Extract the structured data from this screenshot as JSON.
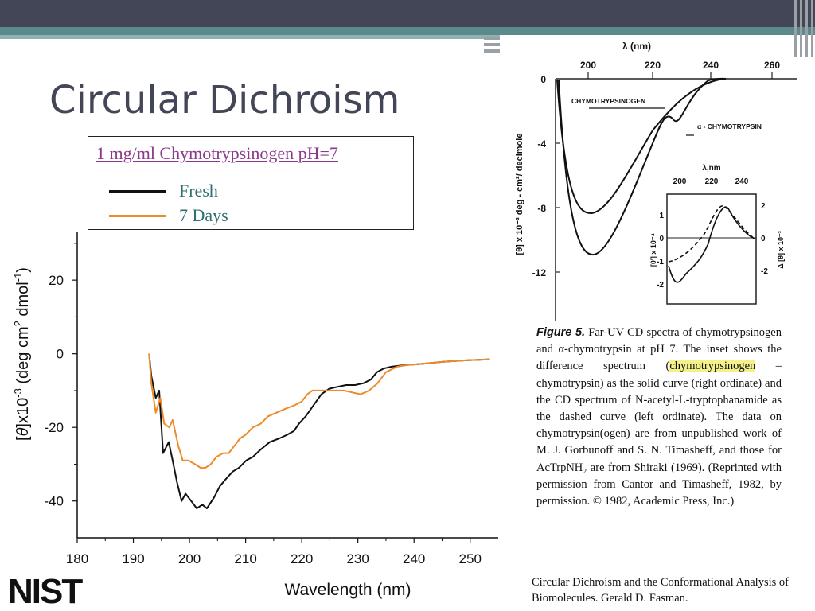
{
  "slide": {
    "title": "Circular Dichroism"
  },
  "legend": {
    "title": "1 mg/ml Chymotrypsinogen pH=7",
    "items": [
      {
        "label": "Fresh",
        "color": "#111111"
      },
      {
        "label": "7 Days",
        "color": "#ee8a2a"
      }
    ]
  },
  "chart_data": [
    {
      "type": "line",
      "title": "",
      "xlabel": "Wavelength (nm)",
      "ylabel_parts": [
        "[",
        "θ",
        "]x10",
        "-3",
        " (deg cm",
        "2",
        " dmol",
        "-1",
        ")"
      ],
      "xlim": [
        180,
        255
      ],
      "ylim": [
        -50,
        33
      ],
      "xticks": [
        180,
        190,
        200,
        210,
        220,
        230,
        240,
        250
      ],
      "yticks": [
        20,
        0,
        -20,
        -40
      ],
      "grid": false,
      "legend": "top",
      "series": [
        {
          "name": "Fresh",
          "color": "#111111",
          "x": [
            192.8,
            193.2,
            194,
            194.6,
            195.3,
            196.3,
            197,
            197.8,
            198.6,
            199.3,
            200.3,
            201.3,
            202.3,
            203.1,
            204.4,
            205.4,
            206.5,
            207.7,
            208.8,
            210.1,
            211.3,
            212.7,
            214.3,
            216,
            217.4,
            218.6,
            219.5,
            220.7,
            222.1,
            223.5,
            224.9,
            226.3,
            227.9,
            229.5,
            231,
            232.3,
            233.4,
            234.6,
            236,
            237.6,
            239,
            241,
            243,
            245,
            247,
            249,
            250.5,
            252,
            253.5
          ],
          "y": [
            0,
            -6,
            -12,
            -10,
            -27,
            -24,
            -29,
            -35,
            -40,
            -38,
            -40,
            -42,
            -41,
            -42,
            -39,
            -36,
            -34,
            -32,
            -31,
            -29,
            -28,
            -26,
            -24,
            -23,
            -22,
            -21,
            -19,
            -17,
            -14,
            -11,
            -9.5,
            -9,
            -8.5,
            -8.5,
            -8,
            -7,
            -5,
            -4,
            -3.5,
            -3.2,
            -3,
            -2.8,
            -2.5,
            -2.2,
            -2,
            -1.8,
            -1.7,
            -1.6,
            -1.5
          ]
        },
        {
          "name": "7 Days",
          "color": "#ee8a2a",
          "x": [
            192.8,
            193.2,
            194,
            194.8,
            195.5,
            196.4,
            197,
            198,
            198.8,
            199.8,
            201,
            202,
            202.8,
            203.8,
            204.8,
            206,
            207,
            208,
            209,
            210,
            211.3,
            212.7,
            214,
            215.5,
            217,
            218.7,
            220,
            221,
            221.9,
            223,
            224.5,
            226,
            227.5,
            229,
            230.5,
            232,
            233.5,
            235,
            237,
            239,
            241,
            243,
            245,
            247,
            249,
            250.5,
            252,
            253.5
          ],
          "y": [
            0,
            -8,
            -16,
            -12,
            -19,
            -20,
            -18,
            -25,
            -29,
            -29,
            -30,
            -31,
            -31,
            -30,
            -28,
            -27,
            -27,
            -25,
            -23,
            -22,
            -20,
            -19,
            -17,
            -16,
            -15,
            -14,
            -13,
            -11,
            -10,
            -10,
            -10,
            -10,
            -10,
            -10.5,
            -11,
            -10,
            -8,
            -5,
            -3.5,
            -3,
            -2.8,
            -2.5,
            -2.2,
            -2,
            -1.8,
            -1.7,
            -1.6,
            -1.5
          ]
        }
      ]
    },
    {
      "type": "line",
      "title": "",
      "xlabel": "λ (nm)",
      "ylabel": "[θ] x 10⁻³ deg - cm²/ decimole",
      "xlim": [
        190,
        260
      ],
      "ylim": [
        -15,
        0
      ],
      "xticks": [
        200,
        220,
        240,
        260
      ],
      "yticks": [
        0,
        -4,
        -8,
        -12
      ],
      "series_labels": [
        "CHYMOTRYPSINOGEN",
        "α - CHYMOTRYPSIN"
      ],
      "inset": {
        "xlabel": "λ,nm",
        "xticks": [
          200,
          220,
          240
        ],
        "left_yticks": [
          1,
          0,
          -1,
          -2
        ],
        "right_yticks": [
          2,
          0,
          -2
        ],
        "left_ylabel": "[θ'] x 10⁻⁴",
        "right_ylabel": "Δ [θ] x 10⁻³"
      }
    }
  ],
  "figure_caption": {
    "label": "Figure 5.",
    "text_before": " Far-UV CD spectra of chymotrypsinogen and α-chymotrypsin at pH 7. The inset shows the difference spectrum (",
    "highlight": "chymotrypsinogen",
    "text_after": " – chymotrypsin) as the solid curve (right ordinate) and the CD spectrum of N-acetyl-L-tryptophanamide as the dashed curve (left ordinate). The data on chymotrypsin(ogen) are from unpublished work of M. J. Gorbunoff and S. N. Timasheff, and those for AcTrpNH₂ are from Shiraki (1969). (Reprinted with permission from Cantor and Timasheff, 1982, by permission. © 1982, Academic Press, Inc.)"
  },
  "credit": {
    "text": "Circular Dichroism and the Conformational Analysis of Biomolecules. Gerald D. Fasman."
  },
  "logo": {
    "text": "NIST"
  }
}
